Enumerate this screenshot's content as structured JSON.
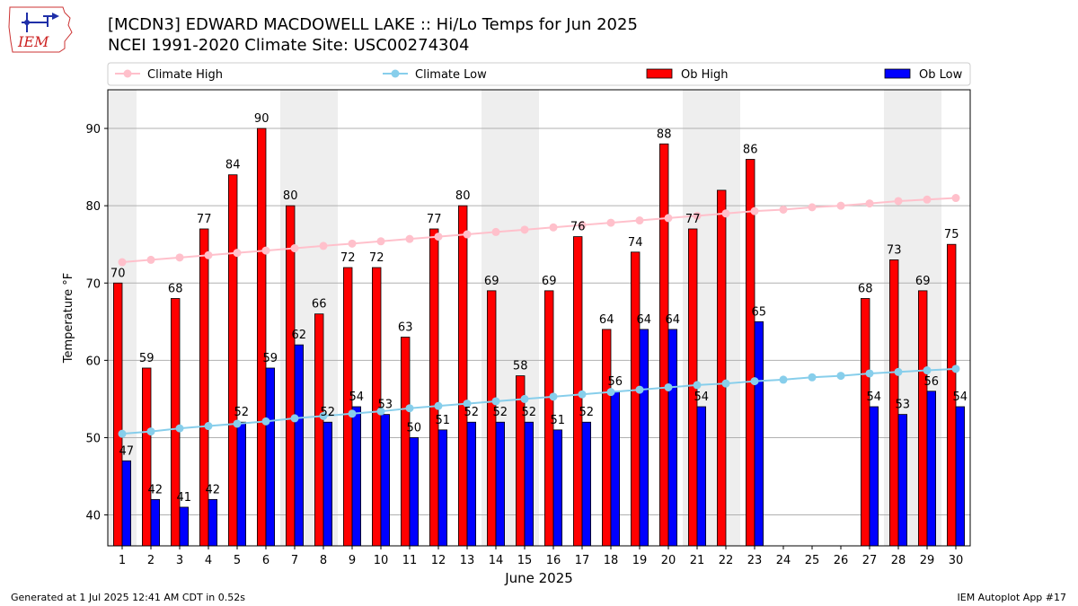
{
  "header": {
    "title_line1": "[MCDN3] EDWARD MACDOWELL LAKE :: Hi/Lo Temps for Jun 2025",
    "title_line2": "NCEI 1991-2020 Climate Site: USC00274304",
    "logo_text": "IEM"
  },
  "footer": {
    "generated": "Generated at 1 Jul 2025 12:41 AM CDT in 0.52s",
    "app": "IEM Autoplot App #17"
  },
  "colors": {
    "ob_high": "#ff0000",
    "ob_low": "#0000ff",
    "climate_high": "#ffc0cb",
    "climate_low": "#87ceeb",
    "weekend_shade": "#eeeeee",
    "grid": "#b0b0b0"
  },
  "chart_data": {
    "type": "bar",
    "xlabel": "June 2025",
    "ylabel": "Temperature °F",
    "ylim": [
      36,
      95
    ],
    "yticks": [
      40,
      50,
      60,
      70,
      80,
      90
    ],
    "grid": "horizontal",
    "legend_position": "top",
    "shaded_days": [
      [
        1,
        1
      ],
      [
        7,
        8
      ],
      [
        14,
        15
      ],
      [
        21,
        22
      ],
      [
        28,
        29
      ]
    ],
    "categories": [
      "1",
      "2",
      "3",
      "4",
      "5",
      "6",
      "7",
      "8",
      "9",
      "10",
      "11",
      "12",
      "13",
      "14",
      "15",
      "16",
      "17",
      "18",
      "19",
      "20",
      "21",
      "22",
      "23",
      "24",
      "25",
      "26",
      "27",
      "28",
      "29",
      "30"
    ],
    "series": [
      {
        "name": "Climate High",
        "kind": "line",
        "values": [
          72.7,
          73.0,
          73.3,
          73.6,
          73.9,
          74.2,
          74.5,
          74.8,
          75.1,
          75.4,
          75.7,
          76.0,
          76.3,
          76.6,
          76.9,
          77.2,
          77.5,
          77.8,
          78.1,
          78.4,
          78.7,
          79.0,
          79.3,
          79.5,
          79.8,
          80.0,
          80.3,
          80.6,
          80.8,
          81.0
        ]
      },
      {
        "name": "Climate Low",
        "kind": "line",
        "values": [
          50.5,
          50.8,
          51.2,
          51.5,
          51.8,
          52.1,
          52.5,
          52.8,
          53.1,
          53.4,
          53.8,
          54.1,
          54.4,
          54.7,
          55.0,
          55.3,
          55.6,
          55.9,
          56.2,
          56.5,
          56.8,
          57.0,
          57.3,
          57.5,
          57.8,
          58.0,
          58.3,
          58.5,
          58.7,
          58.9
        ]
      },
      {
        "name": "Ob High",
        "kind": "bar",
        "values": [
          70,
          59,
          68,
          77,
          84,
          90,
          80,
          66,
          72,
          72,
          63,
          77,
          80,
          69,
          58,
          69,
          76,
          64,
          74,
          88,
          77,
          82,
          86,
          null,
          null,
          null,
          68,
          73,
          69,
          75
        ],
        "labels": [
          "70",
          "59",
          "68",
          "77",
          "84",
          "90",
          "80",
          "66",
          "72",
          "72",
          "63",
          "77",
          "80",
          "69",
          "58",
          "69",
          "76",
          "64",
          "74",
          "88",
          "77",
          "",
          "86",
          "",
          "",
          "",
          "68",
          "73",
          "69",
          "75"
        ]
      },
      {
        "name": "Ob Low",
        "kind": "bar",
        "values": [
          47,
          42,
          41,
          42,
          52,
          59,
          62,
          52,
          54,
          53,
          50,
          51,
          52,
          52,
          52,
          51,
          52,
          56,
          64,
          64,
          54,
          null,
          65,
          null,
          null,
          null,
          54,
          53,
          56,
          54
        ],
        "labels": [
          "47",
          "42",
          "41",
          "42",
          "52",
          "59",
          "62",
          "52",
          "54",
          "53",
          "50",
          "51",
          "52",
          "52",
          "52",
          "51",
          "52",
          "56",
          "64",
          "64",
          "54",
          "",
          "65",
          "",
          "",
          "",
          "54",
          "53",
          "56",
          "54"
        ]
      }
    ]
  }
}
